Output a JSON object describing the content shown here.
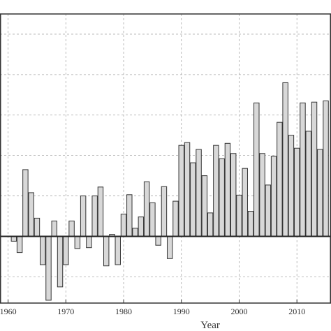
{
  "chart_data": {
    "type": "bar",
    "title": "",
    "xlabel": "Year",
    "ylabel": "",
    "x_tick_labels": [
      "1960",
      "1970",
      "1980",
      "1990",
      "2000",
      "2010"
    ],
    "x_ticks": [
      1960,
      1970,
      1980,
      1990,
      2000,
      2010
    ],
    "xlim": [
      1958.6,
      2015.9
    ],
    "ylim": [
      -1.65,
      5.5
    ],
    "y_gridlines": [
      -1,
      0,
      1,
      2,
      3,
      4,
      5
    ],
    "grid": true,
    "baseline": 0,
    "x": [
      1961,
      1962,
      1963,
      1964,
      1965,
      1966,
      1967,
      1968,
      1969,
      1970,
      1971,
      1972,
      1973,
      1974,
      1975,
      1976,
      1977,
      1978,
      1979,
      1980,
      1981,
      1982,
      1983,
      1984,
      1985,
      1986,
      1987,
      1988,
      1989,
      1990,
      1991,
      1992,
      1993,
      1994,
      1995,
      1996,
      1997,
      1998,
      1999,
      2000,
      2001,
      2002,
      2003,
      2004,
      2005,
      2006,
      2007,
      2008,
      2009,
      2010,
      2011,
      2012,
      2013,
      2014,
      2015
    ],
    "values": [
      -0.12,
      -0.4,
      1.65,
      1.08,
      0.45,
      -0.7,
      -1.58,
      0.38,
      -1.25,
      -0.7,
      0.38,
      -0.3,
      1.0,
      -0.28,
      1.0,
      1.22,
      -0.73,
      0.05,
      -0.7,
      0.55,
      1.03,
      0.2,
      0.48,
      1.35,
      0.83,
      -0.22,
      1.23,
      -0.55,
      0.87,
      2.25,
      2.32,
      1.82,
      2.15,
      1.5,
      0.58,
      2.25,
      1.92,
      2.3,
      2.05,
      1.02,
      1.68,
      0.62,
      3.3,
      2.05,
      1.27,
      1.98,
      2.82,
      3.8,
      2.5,
      2.18,
      3.3,
      2.6,
      3.32,
      2.15,
      3.35
    ]
  }
}
